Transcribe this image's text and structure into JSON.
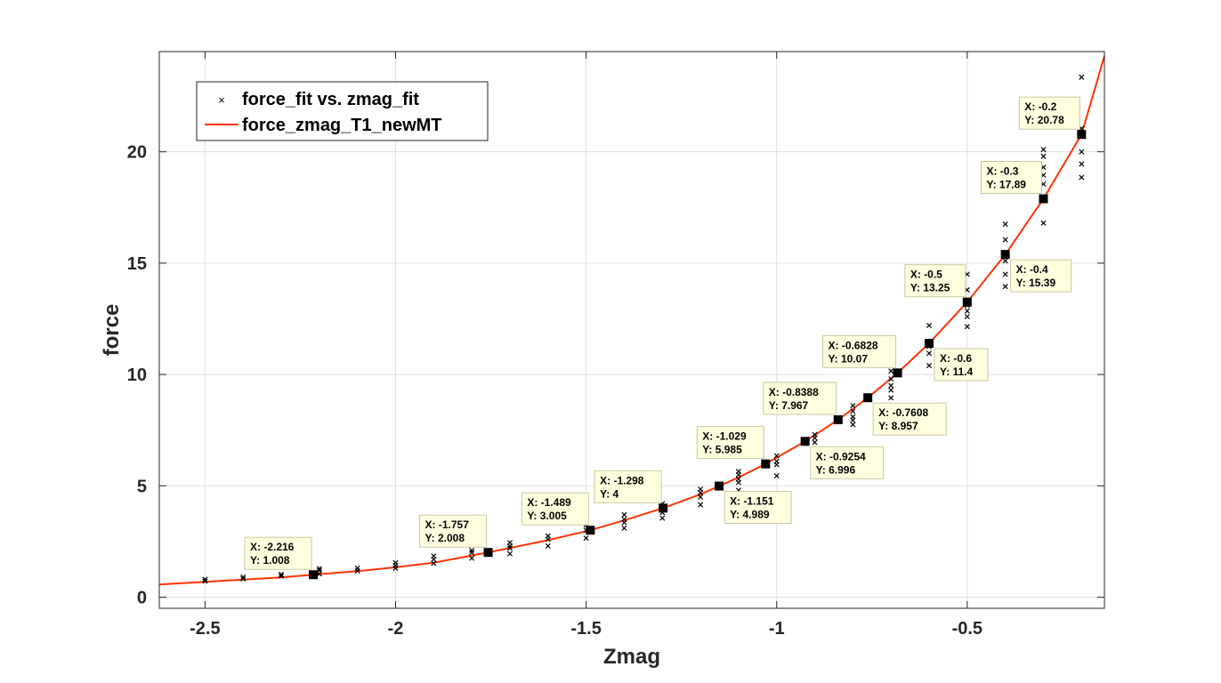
{
  "chart_data": {
    "type": "scatter",
    "title": "",
    "xlabel": "Zmag",
    "ylabel": "force",
    "xlim": [
      -2.62,
      -0.14
    ],
    "ylim": [
      -0.5,
      24.5
    ],
    "xticks": [
      -2.5,
      -2,
      -1.5,
      -1,
      -0.5
    ],
    "xtick_labels": [
      "-2.5",
      "-2",
      "-1.5",
      "-1",
      "-0.5"
    ],
    "yticks": [
      0,
      5,
      10,
      15,
      20
    ],
    "ytick_labels": [
      "0",
      "5",
      "10",
      "15",
      "20"
    ],
    "grid": true,
    "legend_position": "top-left",
    "legend": [
      {
        "label": "force_fit vs. zmag_fit",
        "marker": "x",
        "color": "#000000"
      },
      {
        "label": "force_zmag_T1_newMT",
        "marker": "line",
        "color": "#ff3300"
      }
    ],
    "colors": {
      "points": "#000000",
      "fit": "#ff3300",
      "tip_bg": "#ffffe0",
      "grid": "#e0e0e0"
    },
    "series": [
      {
        "name": "force_fit vs. zmag_fit",
        "type": "scatter",
        "points": [
          {
            "x": -2.5,
            "y": 0.72
          },
          {
            "x": -2.5,
            "y": 0.8
          },
          {
            "x": -2.4,
            "y": 0.82
          },
          {
            "x": -2.4,
            "y": 0.9
          },
          {
            "x": -2.3,
            "y": 0.95
          },
          {
            "x": -2.3,
            "y": 1.02
          },
          {
            "x": -2.2,
            "y": 1.05
          },
          {
            "x": -2.2,
            "y": 1.2
          },
          {
            "x": -2.2,
            "y": 1.28
          },
          {
            "x": -2.1,
            "y": 1.18
          },
          {
            "x": -2.1,
            "y": 1.3
          },
          {
            "x": -2.0,
            "y": 1.3
          },
          {
            "x": -2.0,
            "y": 1.42
          },
          {
            "x": -2.0,
            "y": 1.55
          },
          {
            "x": -1.9,
            "y": 1.52
          },
          {
            "x": -1.9,
            "y": 1.7
          },
          {
            "x": -1.9,
            "y": 1.85
          },
          {
            "x": -1.8,
            "y": 1.75
          },
          {
            "x": -1.8,
            "y": 2.0
          },
          {
            "x": -1.8,
            "y": 2.1
          },
          {
            "x": -1.7,
            "y": 1.95
          },
          {
            "x": -1.7,
            "y": 2.2
          },
          {
            "x": -1.7,
            "y": 2.3
          },
          {
            "x": -1.7,
            "y": 2.45
          },
          {
            "x": -1.6,
            "y": 2.3
          },
          {
            "x": -1.6,
            "y": 2.6
          },
          {
            "x": -1.6,
            "y": 2.75
          },
          {
            "x": -1.5,
            "y": 2.65
          },
          {
            "x": -1.5,
            "y": 3.0
          },
          {
            "x": -1.5,
            "y": 3.25
          },
          {
            "x": -1.4,
            "y": 3.1
          },
          {
            "x": -1.4,
            "y": 3.35
          },
          {
            "x": -1.4,
            "y": 3.5
          },
          {
            "x": -1.4,
            "y": 3.7
          },
          {
            "x": -1.3,
            "y": 3.55
          },
          {
            "x": -1.3,
            "y": 3.8
          },
          {
            "x": -1.3,
            "y": 4.2
          },
          {
            "x": -1.2,
            "y": 4.15
          },
          {
            "x": -1.2,
            "y": 4.5
          },
          {
            "x": -1.2,
            "y": 4.7
          },
          {
            "x": -1.2,
            "y": 4.85
          },
          {
            "x": -1.1,
            "y": 4.8
          },
          {
            "x": -1.1,
            "y": 5.15
          },
          {
            "x": -1.1,
            "y": 5.3
          },
          {
            "x": -1.1,
            "y": 5.5
          },
          {
            "x": -1.1,
            "y": 5.65
          },
          {
            "x": -1.0,
            "y": 5.45
          },
          {
            "x": -1.0,
            "y": 5.95
          },
          {
            "x": -1.0,
            "y": 6.1
          },
          {
            "x": -1.0,
            "y": 6.35
          },
          {
            "x": -0.9,
            "y": 6.95
          },
          {
            "x": -0.9,
            "y": 7.15
          },
          {
            "x": -0.9,
            "y": 7.3
          },
          {
            "x": -0.8,
            "y": 7.75
          },
          {
            "x": -0.8,
            "y": 7.95
          },
          {
            "x": -0.8,
            "y": 8.1
          },
          {
            "x": -0.8,
            "y": 8.35
          },
          {
            "x": -0.8,
            "y": 8.6
          },
          {
            "x": -0.7,
            "y": 8.95
          },
          {
            "x": -0.7,
            "y": 9.3
          },
          {
            "x": -0.7,
            "y": 9.5
          },
          {
            "x": -0.7,
            "y": 9.8
          },
          {
            "x": -0.7,
            "y": 10.15
          },
          {
            "x": -0.7,
            "y": 10.55
          },
          {
            "x": -0.6,
            "y": 10.4
          },
          {
            "x": -0.6,
            "y": 10.95
          },
          {
            "x": -0.6,
            "y": 11.25
          },
          {
            "x": -0.6,
            "y": 12.2
          },
          {
            "x": -0.5,
            "y": 12.15
          },
          {
            "x": -0.5,
            "y": 12.6
          },
          {
            "x": -0.5,
            "y": 12.85
          },
          {
            "x": -0.5,
            "y": 13.1
          },
          {
            "x": -0.5,
            "y": 13.8
          },
          {
            "x": -0.5,
            "y": 14.5
          },
          {
            "x": -0.4,
            "y": 13.95
          },
          {
            "x": -0.4,
            "y": 14.5
          },
          {
            "x": -0.4,
            "y": 15.1
          },
          {
            "x": -0.4,
            "y": 16.05
          },
          {
            "x": -0.4,
            "y": 16.75
          },
          {
            "x": -0.3,
            "y": 16.8
          },
          {
            "x": -0.3,
            "y": 17.9
          },
          {
            "x": -0.3,
            "y": 18.55
          },
          {
            "x": -0.3,
            "y": 18.95
          },
          {
            "x": -0.3,
            "y": 19.3
          },
          {
            "x": -0.3,
            "y": 19.8
          },
          {
            "x": -0.3,
            "y": 20.1
          },
          {
            "x": -0.2,
            "y": 18.85
          },
          {
            "x": -0.2,
            "y": 19.45
          },
          {
            "x": -0.2,
            "y": 20.0
          },
          {
            "x": -0.2,
            "y": 21.05
          },
          {
            "x": -0.2,
            "y": 23.35
          }
        ]
      },
      {
        "name": "force_zmag_T1_newMT",
        "type": "line",
        "x": [
          -2.62,
          -2.5,
          -2.4,
          -2.3,
          -2.216,
          -2.1,
          -2.0,
          -1.9,
          -1.757,
          -1.6,
          -1.489,
          -1.4,
          -1.298,
          -1.2,
          -1.151,
          -1.1,
          -1.029,
          -0.9254,
          -0.8388,
          -0.7608,
          -0.6828,
          -0.6,
          -0.5,
          -0.4,
          -0.3,
          -0.2,
          -0.14
        ],
        "y": [
          0.57,
          0.69,
          0.79,
          0.89,
          1.008,
          1.17,
          1.34,
          1.55,
          2.008,
          2.56,
          3.005,
          3.45,
          4.0,
          4.62,
          4.989,
          5.38,
          5.985,
          6.996,
          7.967,
          8.957,
          10.07,
          11.4,
          13.25,
          15.39,
          17.89,
          20.78,
          24.3
        ]
      }
    ],
    "datatips": [
      {
        "x": -2.216,
        "y": 1.008,
        "x_label": "X: -2.216",
        "y_label": "Y: 1.008",
        "side": "above"
      },
      {
        "x": -1.757,
        "y": 2.008,
        "x_label": "X: -1.757",
        "y_label": "Y: 2.008",
        "side": "above"
      },
      {
        "x": -1.489,
        "y": 3.005,
        "x_label": "X: -1.489",
        "y_label": "Y: 3.005",
        "side": "above"
      },
      {
        "x": -1.298,
        "y": 4.0,
        "x_label": "X: -1.298",
        "y_label": "Y: 4",
        "side": "above"
      },
      {
        "x": -1.151,
        "y": 4.989,
        "x_label": "X: -1.151",
        "y_label": "Y: 4.989",
        "side": "below"
      },
      {
        "x": -1.029,
        "y": 5.985,
        "x_label": "X: -1.029",
        "y_label": "Y: 5.985",
        "side": "above"
      },
      {
        "x": -0.9254,
        "y": 6.996,
        "x_label": "X: -0.9254",
        "y_label": "Y: 6.996",
        "side": "below"
      },
      {
        "x": -0.8388,
        "y": 7.967,
        "x_label": "X: -0.8388",
        "y_label": "Y: 7.967",
        "side": "above"
      },
      {
        "x": -0.7608,
        "y": 8.957,
        "x_label": "X: -0.7608",
        "y_label": "Y: 8.957",
        "side": "below"
      },
      {
        "x": -0.6828,
        "y": 10.07,
        "x_label": "X: -0.6828",
        "y_label": "Y: 10.07",
        "side": "above"
      },
      {
        "x": -0.6,
        "y": 11.4,
        "x_label": "X: -0.6",
        "y_label": "Y: 11.4",
        "side": "below"
      },
      {
        "x": -0.5,
        "y": 13.25,
        "x_label": "X: -0.5",
        "y_label": "Y: 13.25",
        "side": "above"
      },
      {
        "x": -0.4,
        "y": 15.39,
        "x_label": "X: -0.4",
        "y_label": "Y: 15.39",
        "side": "below"
      },
      {
        "x": -0.3,
        "y": 17.89,
        "x_label": "X: -0.3",
        "y_label": "Y: 17.89",
        "side": "above"
      },
      {
        "x": -0.2,
        "y": 20.78,
        "x_label": "X: -0.2",
        "y_label": "Y: 20.78",
        "side": "above"
      }
    ]
  }
}
